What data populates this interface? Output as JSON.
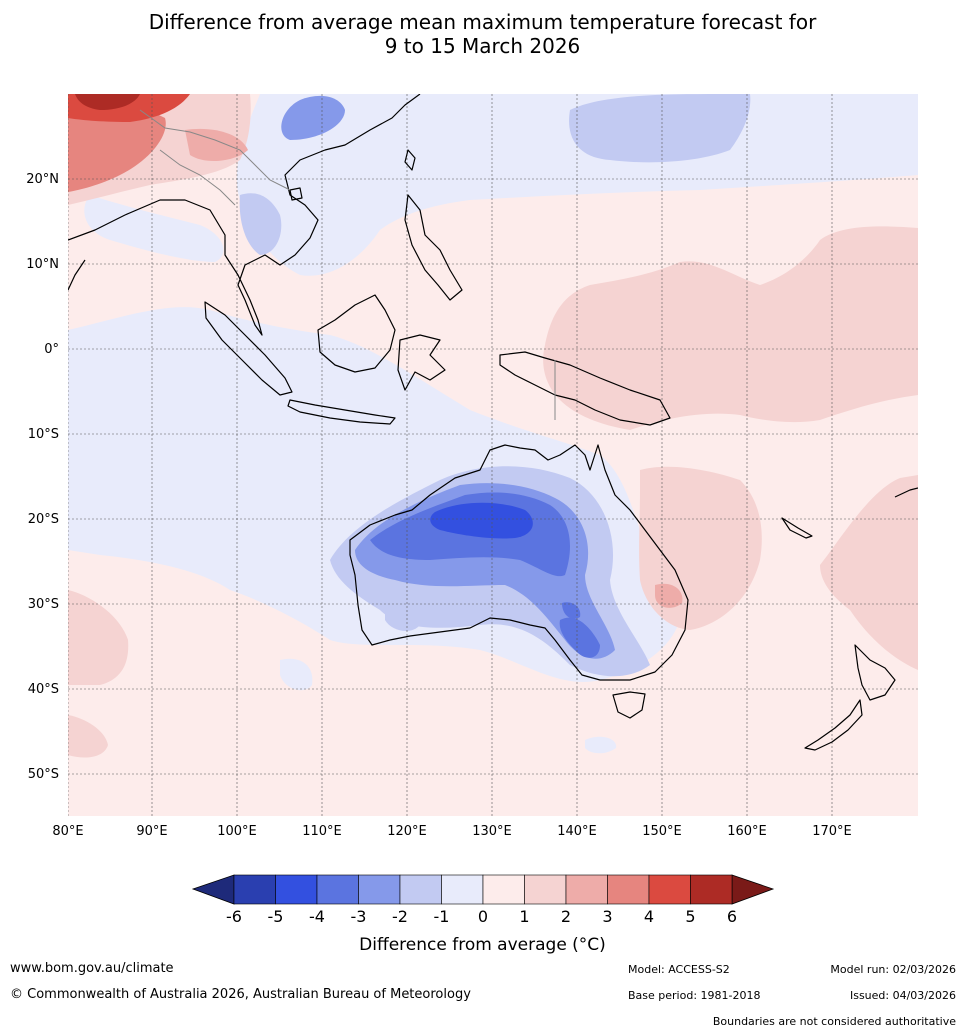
{
  "title": {
    "line1": "Difference from average mean maximum temperature forecast for",
    "line2": "9 to 15 March 2026"
  },
  "map": {
    "lon_labels": [
      "80°E",
      "90°E",
      "100°E",
      "110°E",
      "120°E",
      "130°E",
      "140°E",
      "150°E",
      "160°E",
      "170°E"
    ],
    "lat_labels": [
      "20°N",
      "10°N",
      "0°",
      "10°S",
      "20°S",
      "30°S",
      "40°S",
      "50°S"
    ]
  },
  "colorbar": {
    "ticks": [
      "-6",
      "-5",
      "-4",
      "-3",
      "-2",
      "-1",
      "0",
      "1",
      "2",
      "3",
      "4",
      "5",
      "6"
    ],
    "colors": [
      "#2a3fb0",
      "#3350e0",
      "#5b74e0",
      "#8599ea",
      "#c2caf2",
      "#e8ebfb",
      "#fdeceb",
      "#f5d3d2",
      "#eeaca9",
      "#e6857f",
      "#db4a40",
      "#ad2b25"
    ],
    "under_color": "#1e2a7a",
    "over_color": "#7a1a18",
    "label": "Difference from average (°C)"
  },
  "footer": {
    "website": "www.bom.gov.au/climate",
    "copyright": "© Commonwealth of Australia 2026, Australian Bureau of Meteorology",
    "model": "Model: ACCESS-S2",
    "base_period": "Base period: 1981-2018",
    "model_run": "Model run: 02/03/2026",
    "issued": "Issued: 04/03/2026",
    "disclaimer": "Boundaries are not considered authoritative"
  }
}
